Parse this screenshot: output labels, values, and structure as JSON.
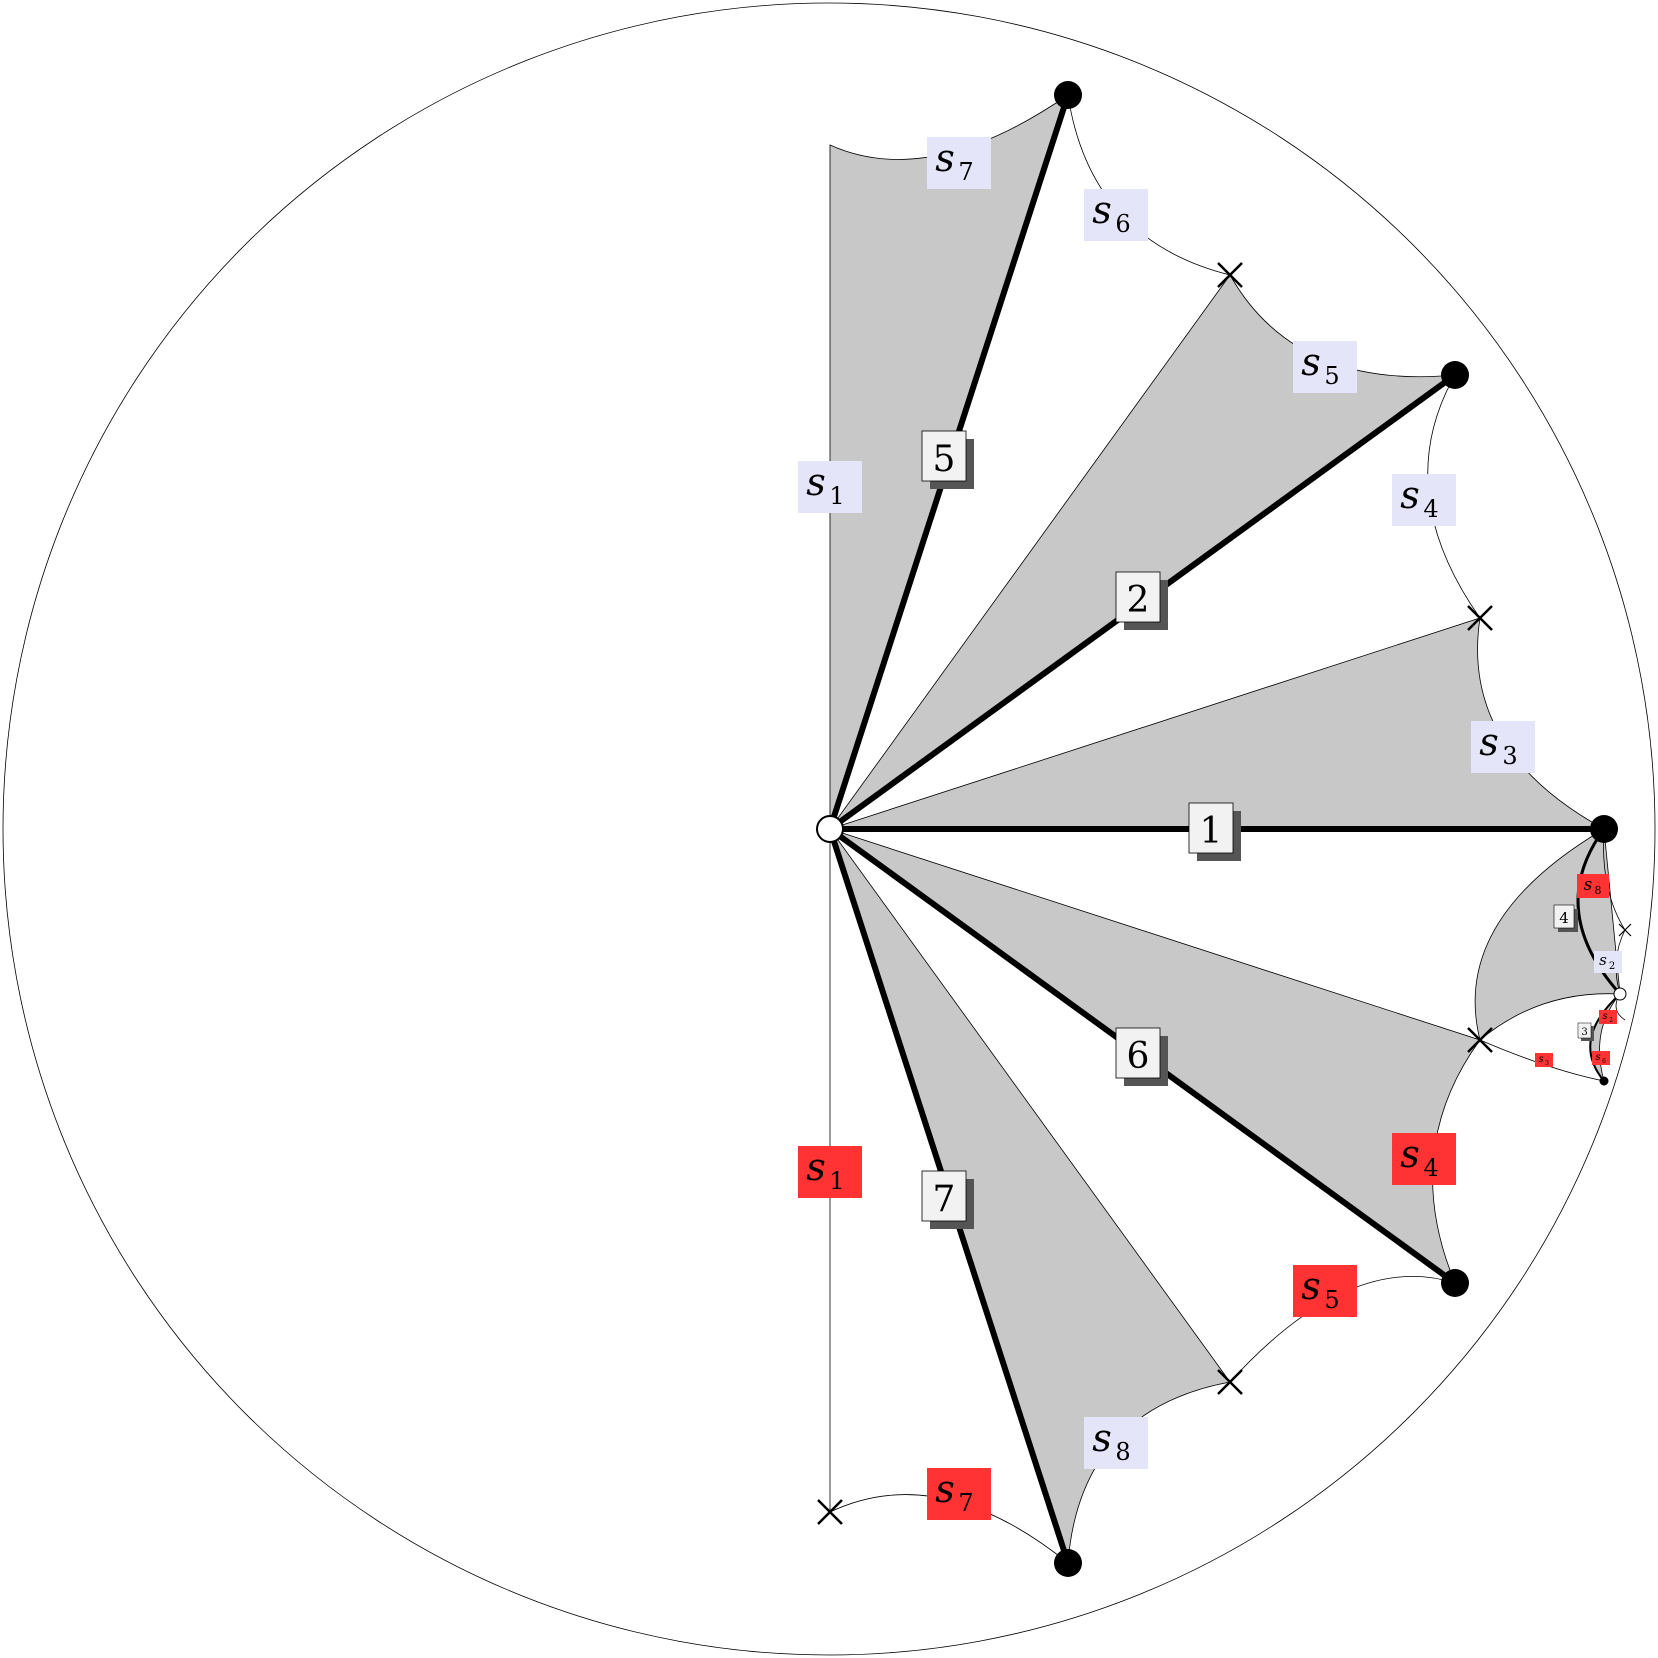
{
  "colors": {
    "shade": "#c8c8c8",
    "side_label_blue": "#e5e5fa",
    "side_label_red": "#ff3333",
    "edge_label_bg": "#f2f2f2",
    "edge_label_shadow": "#555555",
    "ink": "#000000"
  },
  "vertex_markers": {
    "center": "open-circle",
    "corners": "filled-circle",
    "midpoints": "cross-mark"
  },
  "edge_labels": {
    "e1": "1",
    "e2": "2",
    "e3": "3",
    "e4": "4",
    "e5": "5",
    "e6": "6",
    "e7": "7"
  },
  "side_labels": {
    "blue": {
      "s1": {
        "base": "s",
        "sub": "1"
      },
      "s2": {
        "base": "s",
        "sub": "2"
      },
      "s3": {
        "base": "s",
        "sub": "3"
      },
      "s4": {
        "base": "s",
        "sub": "4"
      },
      "s5": {
        "base": "s",
        "sub": "5"
      },
      "s6": {
        "base": "s",
        "sub": "6"
      },
      "s7": {
        "base": "s",
        "sub": "7"
      },
      "s8": {
        "base": "s",
        "sub": "8"
      }
    },
    "red": {
      "s1": {
        "base": "s",
        "sub": "1"
      },
      "s2": {
        "base": "s",
        "sub": "2"
      },
      "s3": {
        "base": "s",
        "sub": "3"
      },
      "s4": {
        "base": "s",
        "sub": "4"
      },
      "s5": {
        "base": "s",
        "sub": "5"
      },
      "s6": {
        "base": "s",
        "sub": "6"
      },
      "s7": {
        "base": "s",
        "sub": "7"
      },
      "s8": {
        "base": "s",
        "sub": "8"
      }
    }
  }
}
